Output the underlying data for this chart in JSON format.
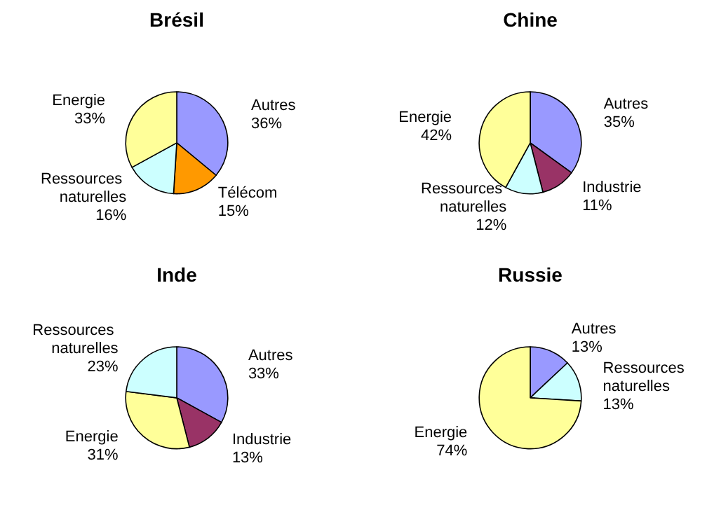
{
  "chart_data": [
    {
      "type": "pie",
      "title": "Brésil",
      "categories": [
        "Autres",
        "Télécom",
        "Ressources naturelles",
        "Energie"
      ],
      "values": [
        36,
        15,
        16,
        33
      ],
      "value_labels": [
        "36%",
        "15%",
        "16%",
        "33%"
      ],
      "colors": [
        "#9999ff",
        "#ff9900",
        "#ccffff",
        "#ffff99"
      ],
      "legend": false
    },
    {
      "type": "pie",
      "title": "Chine",
      "categories": [
        "Autres",
        "Industrie",
        "Ressources naturelles",
        "Energie"
      ],
      "values": [
        35,
        11,
        12,
        42
      ],
      "value_labels": [
        "35%",
        "11%",
        "12%",
        "42%"
      ],
      "colors": [
        "#9999ff",
        "#993366",
        "#ccffff",
        "#ffff99"
      ],
      "legend": false
    },
    {
      "type": "pie",
      "title": "Inde",
      "categories": [
        "Autres",
        "Industrie",
        "Energie",
        "Ressources naturelles"
      ],
      "values": [
        33,
        13,
        31,
        23
      ],
      "value_labels": [
        "33%",
        "13%",
        "31%",
        "23%"
      ],
      "colors": [
        "#9999ff",
        "#993366",
        "#ffff99",
        "#ccffff"
      ],
      "legend": false
    },
    {
      "type": "pie",
      "title": "Russie",
      "categories": [
        "Autres",
        "Ressources naturelles",
        "Energie"
      ],
      "values": [
        13,
        13,
        74
      ],
      "value_labels": [
        "13%",
        "13%",
        "74%"
      ],
      "colors": [
        "#9999ff",
        "#ccffff",
        "#ffff99"
      ],
      "legend": false
    }
  ]
}
